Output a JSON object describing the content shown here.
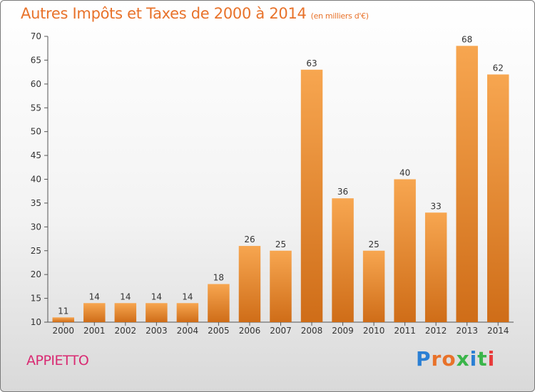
{
  "title": "Autres Impôts et Taxes de 2000 à 2014",
  "subtitle": "(en milliers d'€)",
  "commune": "APPIETTO",
  "logo": {
    "letters": [
      "P",
      "r",
      "o",
      "x",
      "i",
      "t",
      "i"
    ],
    "colors": [
      "#2a7fd4",
      "#e8722a",
      "#e8722a",
      "#3ab54a",
      "#2a7fd4",
      "#3ab54a",
      "#e83a3a"
    ]
  },
  "colors": {
    "bar_top": "#f7a650",
    "bar_bottom": "#cf6d18",
    "title": "#e8722a",
    "commune": "#d92a72"
  },
  "chart_data": {
    "type": "bar",
    "title": "Autres Impôts et Taxes de 2000 à 2014",
    "subtitle": "(en milliers d'€)",
    "categories": [
      "2000",
      "2001",
      "2002",
      "2003",
      "2004",
      "2005",
      "2006",
      "2007",
      "2008",
      "2009",
      "2010",
      "2011",
      "2012",
      "2013",
      "2014"
    ],
    "values": [
      11,
      14,
      14,
      14,
      14,
      18,
      26,
      25,
      63,
      36,
      25,
      40,
      33,
      68,
      62
    ],
    "ylim": [
      10,
      70
    ],
    "yticks": [
      10,
      15,
      20,
      25,
      30,
      35,
      40,
      45,
      50,
      55,
      60,
      65,
      70
    ],
    "grid": false
  }
}
